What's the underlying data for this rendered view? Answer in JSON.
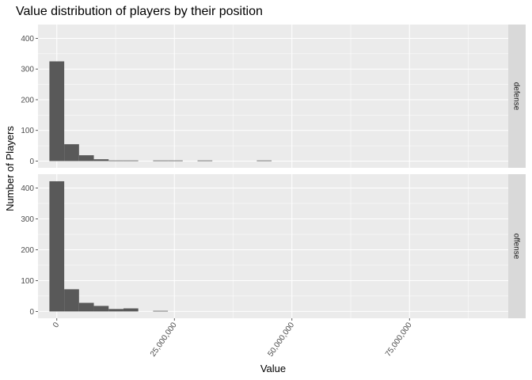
{
  "chart_data": {
    "type": "bar",
    "title": "Value distribution of players by their position",
    "xlabel": "Value",
    "ylabel": "Number of Players",
    "xlim": [
      -4000000,
      96000000
    ],
    "ylim": [
      -22,
      445
    ],
    "x_ticks": [
      0,
      25000000,
      50000000,
      75000000
    ],
    "x_tick_labels": [
      "0",
      "25,000,000",
      "50,000,000",
      "75,000,000"
    ],
    "y_ticks": [
      0,
      100,
      200,
      300,
      400
    ],
    "y_tick_labels": [
      "0",
      "100",
      "200",
      "300",
      "400"
    ],
    "bin_width": 3150000,
    "grid": true,
    "panels": [
      {
        "name": "defense",
        "bins": [
          {
            "x": 0,
            "count": 325
          },
          {
            "x": 3150000,
            "count": 55
          },
          {
            "x": 6300000,
            "count": 19
          },
          {
            "x": 9450000,
            "count": 6
          },
          {
            "x": 12600000,
            "count": 2
          },
          {
            "x": 15750000,
            "count": 2
          },
          {
            "x": 22050000,
            "count": 2
          },
          {
            "x": 25200000,
            "count": 2
          },
          {
            "x": 31500000,
            "count": 2
          },
          {
            "x": 44100000,
            "count": 2
          }
        ]
      },
      {
        "name": "offense",
        "bins": [
          {
            "x": 0,
            "count": 422
          },
          {
            "x": 3150000,
            "count": 72
          },
          {
            "x": 6300000,
            "count": 28
          },
          {
            "x": 9450000,
            "count": 18
          },
          {
            "x": 12600000,
            "count": 8
          },
          {
            "x": 15750000,
            "count": 10
          },
          {
            "x": 22050000,
            "count": 2
          }
        ]
      }
    ]
  }
}
